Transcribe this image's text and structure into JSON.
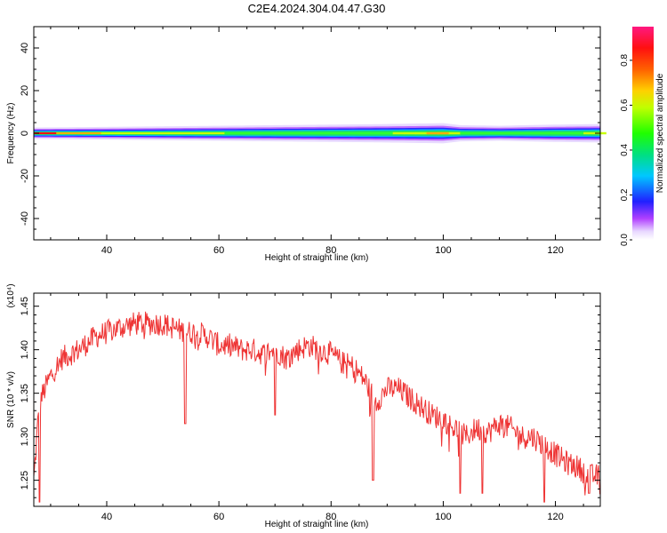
{
  "figure": {
    "title": "C2E4.2024.304.04.47.G30"
  },
  "chart_data": [
    {
      "type": "heatmap",
      "xlabel": "Height of straight line (km)",
      "ylabel": "Frequency (Hz)",
      "xlim": [
        27,
        128
      ],
      "ylim": [
        -50,
        50
      ],
      "x_ticks": [
        40,
        60,
        80,
        100,
        120
      ],
      "y_ticks": [
        -40,
        -20,
        0,
        20,
        40
      ],
      "colorbar": {
        "label": "Normalized spectral amplitude",
        "range": [
          0,
          0.95
        ],
        "ticks": [
          0,
          0.2,
          0.4,
          0.6,
          0.8
        ],
        "colormap": "rainbow (white-violet-blue-cyan-green-yellow-orange-red-magenta)"
      },
      "band": {
        "description_values": "energy concentrated near 0 Hz across all heights",
        "x": [
          27,
          40,
          60,
          80,
          90,
          100,
          103,
          110,
          120,
          128
        ],
        "half_width_hz": [
          2,
          2.2,
          2.6,
          3.0,
          3.2,
          3.5,
          2.8,
          2.6,
          3.0,
          3.2
        ],
        "peak_amplitude": [
          0.9,
          0.6,
          0.55,
          0.5,
          0.55,
          0.7,
          0.5,
          0.55,
          0.5,
          0.6
        ]
      }
    },
    {
      "type": "line",
      "xlabel": "Height of straight line (km)",
      "ylabel": "SNR (10 * v/v)",
      "y_multiplier": "(x10⁴)",
      "xlim": [
        27,
        128
      ],
      "ylim": [
        1.22,
        1.465
      ],
      "x_ticks": [
        40,
        60,
        80,
        100,
        120
      ],
      "y_ticks": [
        1.25,
        1.3,
        1.35,
        1.4,
        1.45
      ],
      "color": "#ee3333",
      "series": [
        {
          "x": [
            27,
            28,
            30,
            32,
            35,
            38,
            40,
            42,
            45,
            48,
            50,
            52,
            54,
            56,
            58,
            60,
            62,
            64,
            66,
            68,
            70,
            72,
            74,
            76,
            78,
            80,
            82,
            84,
            86,
            88,
            90,
            92,
            94,
            96,
            98,
            100,
            102,
            104,
            106,
            108,
            110,
            112,
            114,
            116,
            118,
            120,
            122,
            124,
            126,
            128
          ],
          "values": [
            1.25,
            1.34,
            1.37,
            1.39,
            1.4,
            1.415,
            1.42,
            1.425,
            1.43,
            1.43,
            1.43,
            1.425,
            1.42,
            1.42,
            1.415,
            1.405,
            1.405,
            1.4,
            1.4,
            1.395,
            1.4,
            1.39,
            1.4,
            1.405,
            1.4,
            1.395,
            1.385,
            1.38,
            1.365,
            1.34,
            1.355,
            1.355,
            1.345,
            1.335,
            1.325,
            1.32,
            1.31,
            1.3,
            1.31,
            1.305,
            1.315,
            1.31,
            1.3,
            1.3,
            1.29,
            1.28,
            1.27,
            1.265,
            1.255,
            1.255
          ]
        }
      ],
      "dips": [
        {
          "x": 28,
          "value": 1.225
        },
        {
          "x": 54,
          "value": 1.315
        },
        {
          "x": 70,
          "value": 1.325
        },
        {
          "x": 87.5,
          "value": 1.25
        },
        {
          "x": 103,
          "value": 1.235
        },
        {
          "x": 107,
          "value": 1.235
        },
        {
          "x": 118,
          "value": 1.225
        },
        {
          "x": 126,
          "value": 1.235
        }
      ]
    }
  ]
}
